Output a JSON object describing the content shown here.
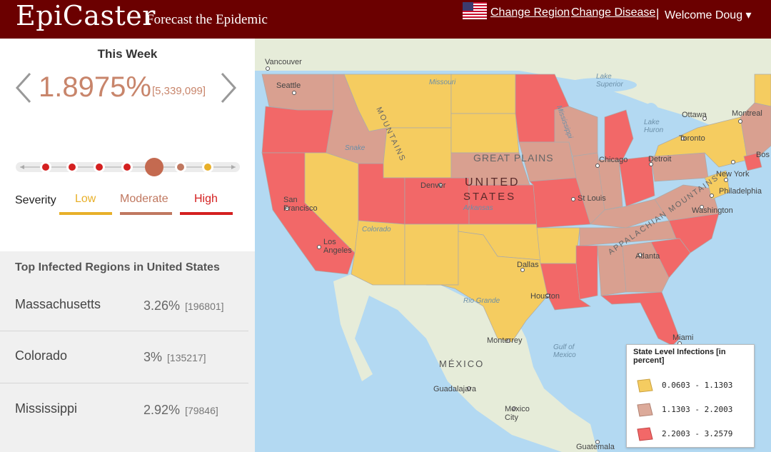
{
  "header": {
    "brand": "EpiCaster",
    "tagline": "Forecast the Epidemic",
    "change_region": "Change Region",
    "change_disease": "Change Disease",
    "separator": "|",
    "welcome": "Welcome Doug ▾"
  },
  "summary": {
    "title": "This Week",
    "percent": "1.8975%",
    "count": "[5,339,099]"
  },
  "timeline": {
    "selected_index": 4,
    "dots": [
      "High",
      "High",
      "High",
      "High",
      "Moderate",
      "Moderate",
      "Low"
    ]
  },
  "severity": {
    "label": "Severity",
    "levels": [
      {
        "name": "Low",
        "color": "#e8b02a"
      },
      {
        "name": "Moderate",
        "color": "#c07860"
      },
      {
        "name": "High",
        "color": "#d42020"
      }
    ]
  },
  "top_regions": {
    "title": "Top Infected Regions in United States",
    "items": [
      {
        "name": "Massachusetts",
        "value": "3.26%",
        "count": "[196801]"
      },
      {
        "name": "Colorado",
        "value": "3%",
        "count": "[135217]"
      },
      {
        "name": "Mississippi",
        "value": "2.92%",
        "count": "[79846]"
      }
    ]
  },
  "map": {
    "labels": {
      "vancouver": "Vancouver",
      "seattle": "Seattle",
      "ottawa": "Ottawa",
      "montreal": "Montreal",
      "toronto": "Toronto",
      "detroit": "Detroit",
      "chicago": "Chicago",
      "boston": "Bos",
      "new_york": "New York",
      "philadelphia": "Philadelphia",
      "washington": "Washington",
      "great_plains": "GREAT PLAINS",
      "united": "UNITED",
      "states": "STATES",
      "denver": "Denver",
      "st_louis": "St Louis",
      "san_francisco": "San\nFrancisco",
      "los_angeles": "Los\nAngeles",
      "dallas": "Dallas",
      "houston": "Houston",
      "atlanta": "Atlanta",
      "miami": "Miami",
      "monterrey": "Monterrey",
      "mexico": "MÉXICO",
      "guadalajara": "Guadalajara",
      "mexico_city": "Mexico\nCity",
      "guatemala": "Guatemala",
      "gulf": "Gulf of\nMexico",
      "missouri": "Missouri",
      "arkansas": "Arkansas",
      "colorado_river": "Colorado",
      "rio_grande": "Rio Grande",
      "snake": "Snake",
      "lake_superior": "Lake\nSuperior",
      "lake_huron": "Lake\nHuron",
      "mississippi_river": "Mississippi",
      "appalachian": "APPALACHIAN MOUNTAINS",
      "rocky": "MOUNTAINS"
    },
    "colors": {
      "low": "#f5cc60",
      "moderate": "#d9a090",
      "high": "#f26868",
      "water": "#b3d9f2",
      "land": "#e6ecd9"
    }
  },
  "map_legend": {
    "title": "State Level Infections [in percent]",
    "items": [
      {
        "range": "0.0603 - 1.1303",
        "color": "#f5cc60"
      },
      {
        "range": "1.1303 - 2.2003",
        "color": "#dcaa9a"
      },
      {
        "range": "2.2003 - 3.2579",
        "color": "#f26868"
      }
    ]
  }
}
